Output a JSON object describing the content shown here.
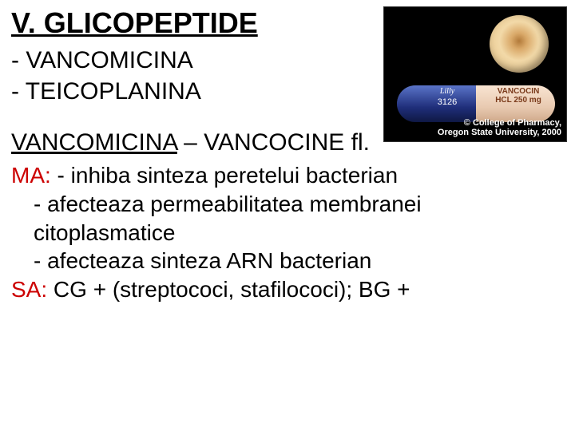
{
  "title": "V. GLICOPEPTIDE",
  "bullets": [
    "VANCOMICINA",
    "TEICOPLANINA"
  ],
  "subheading": {
    "underlined": "VANCOMICINA",
    "rest": " – VANCOCINE fl."
  },
  "ma_label": "MA:",
  "ma_line0": " - inhiba sinteza peretelui bacterian",
  "ma_line1": "- afecteaza permeabilitatea membranei",
  "ma_line1_cont": "citoplasmatice",
  "ma_line2": "- afecteaza sinteza ARN bacterian",
  "sa_label": "SA:",
  "sa_line": " CG + (streptococi, stafilococi); BG +",
  "photo": {
    "capsule_left_brand": "Lilly",
    "capsule_left_code": "3126",
    "capsule_right_name": "VANCOCIN",
    "capsule_right_dose": "HCL 250 mg",
    "credit_line1": "© College of Pharmacy,",
    "credit_line2": "Oregon State University, 2000",
    "colors": {
      "background": "#000000",
      "capsule_left": "#1f2e7a",
      "capsule_right": "#e8c9b0",
      "pill_top": "#e6c184"
    }
  },
  "colors": {
    "title": "#000000",
    "body": "#000000",
    "accent": "#cc0000",
    "page_bg": "#ffffff"
  },
  "fontsizes": {
    "title": 36,
    "bullet": 30,
    "subheading": 30,
    "body": 28,
    "credit": 11
  }
}
